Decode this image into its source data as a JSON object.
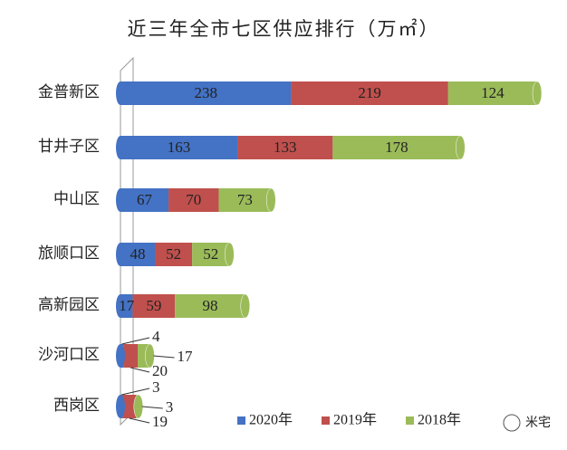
{
  "chart_data": {
    "type": "stacked-bar-horizontal",
    "title": "近三年全市七区供应排行（万㎡）",
    "categories": [
      "金普新区",
      "甘井子区",
      "中山区",
      "旅顺口区",
      "高新园区",
      "沙河口区",
      "西岗区"
    ],
    "series": [
      {
        "name": "2020年",
        "color": "#4472c4",
        "values": [
          238,
          163,
          67,
          48,
          17,
          4,
          3
        ]
      },
      {
        "name": "2019年",
        "color": "#c0504d",
        "values": [
          219,
          133,
          70,
          52,
          59,
          20,
          19
        ]
      },
      {
        "name": "2018年",
        "color": "#9bbb59",
        "values": [
          124,
          178,
          73,
          52,
          98,
          17,
          3
        ]
      }
    ],
    "legend": "bottom",
    "watermark": "米宅"
  }
}
